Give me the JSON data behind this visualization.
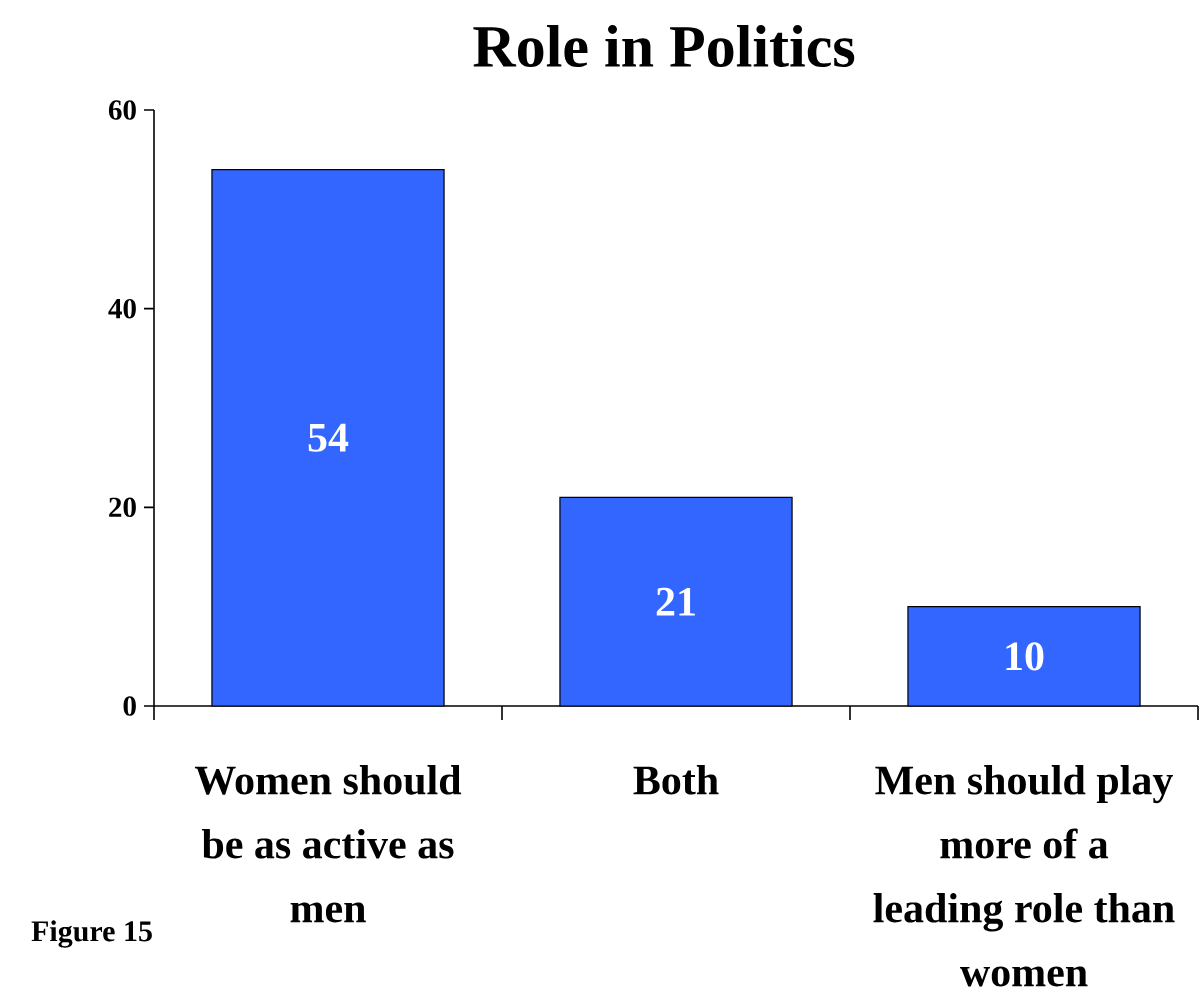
{
  "chart_data": {
    "type": "bar",
    "title": "Role in Politics",
    "categories": [
      "Women should be as active as men",
      "Both",
      "Men should play more of a leading role than women"
    ],
    "values": [
      54,
      21,
      10
    ],
    "color": "#3366ff",
    "ylim": [
      0,
      60
    ],
    "yticks": [
      0,
      20,
      40,
      60
    ],
    "data_labels": true,
    "annotations": [
      "Figure 15"
    ]
  }
}
